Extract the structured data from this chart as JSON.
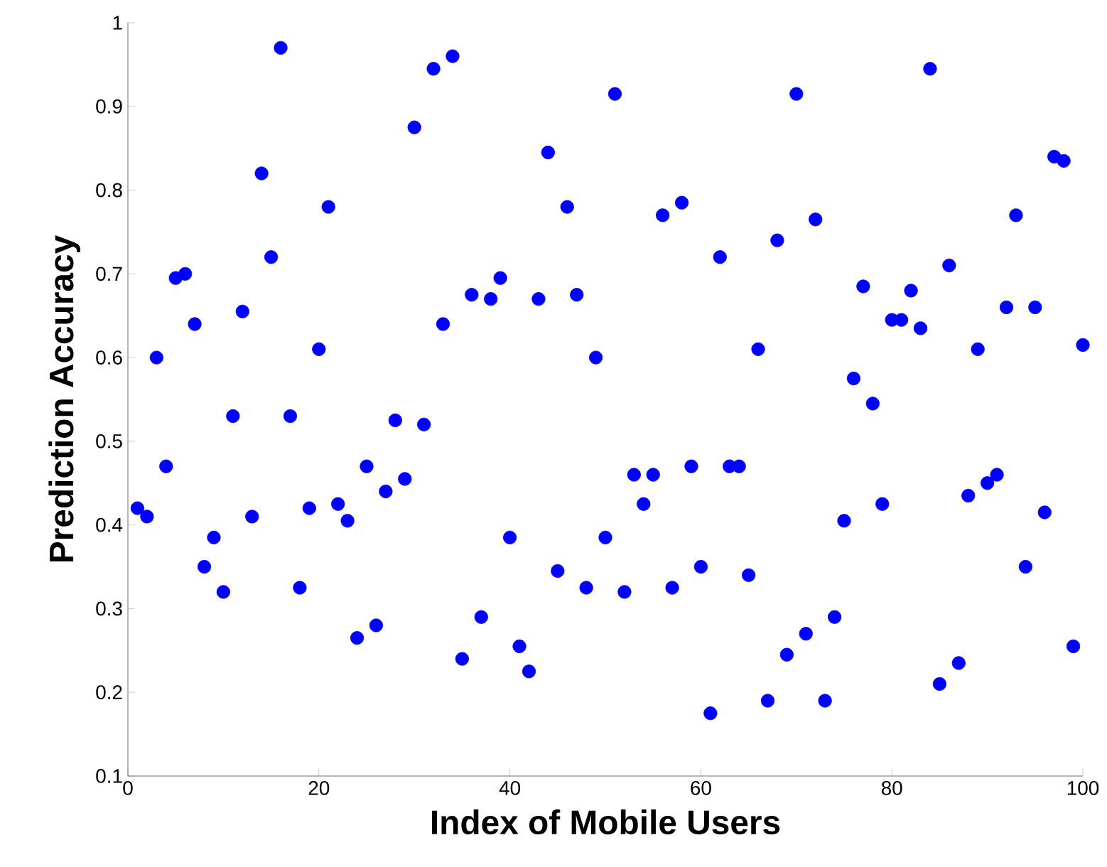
{
  "chart_data": {
    "type": "scatter",
    "xlabel": "Index of Mobile Users",
    "ylabel": "Prediction Accuracy",
    "x": [
      1,
      2,
      3,
      4,
      5,
      6,
      7,
      8,
      9,
      10,
      11,
      12,
      13,
      14,
      15,
      16,
      17,
      18,
      19,
      20,
      21,
      22,
      23,
      24,
      25,
      26,
      27,
      28,
      29,
      30,
      31,
      32,
      33,
      34,
      35,
      36,
      37,
      38,
      39,
      40,
      41,
      42,
      43,
      44,
      45,
      46,
      47,
      48,
      49,
      50,
      51,
      52,
      53,
      54,
      55,
      56,
      57,
      58,
      59,
      60,
      61,
      62,
      63,
      64,
      65,
      66,
      67,
      68,
      69,
      70,
      71,
      72,
      73,
      74,
      75,
      76,
      77,
      78,
      79,
      80,
      81,
      82,
      83,
      84,
      85,
      86,
      87,
      88,
      89,
      90,
      91,
      92,
      93,
      94,
      95,
      96,
      97,
      98,
      99,
      100
    ],
    "series": [
      {
        "color": "#0000ff",
        "values": [
          0.42,
          0.41,
          0.6,
          0.47,
          0.695,
          0.7,
          0.64,
          0.35,
          0.385,
          0.32,
          0.53,
          0.655,
          0.41,
          0.82,
          0.72,
          0.97,
          0.53,
          0.325,
          0.42,
          0.61,
          0.78,
          0.425,
          0.405,
          0.265,
          0.47,
          0.28,
          0.44,
          0.525,
          0.455,
          0.875,
          0.52,
          0.945,
          0.64,
          0.96,
          0.24,
          0.675,
          0.29,
          0.67,
          0.695,
          0.385,
          0.255,
          0.225,
          0.67,
          0.845,
          0.345,
          0.78,
          0.675,
          0.325,
          0.6,
          0.385,
          0.915,
          0.32,
          0.46,
          0.425,
          0.46,
          0.77,
          0.325,
          0.785,
          0.47,
          0.35,
          0.175,
          0.72,
          0.47,
          0.47,
          0.34,
          0.61,
          0.19,
          0.74,
          0.245,
          0.915,
          0.27,
          0.765,
          0.19,
          0.29,
          0.405,
          0.575,
          0.685,
          0.545,
          0.425,
          0.645,
          0.645,
          0.68,
          0.635,
          0.945,
          0.21,
          0.71,
          0.235,
          0.435,
          0.61,
          0.45,
          0.46,
          0.66,
          0.77,
          0.35,
          0.66,
          0.415,
          0.84,
          0.835,
          0.255,
          0.615
        ]
      }
    ],
    "xlim": [
      0,
      100
    ],
    "ylim": [
      0.1,
      1
    ],
    "xticks": [
      0,
      20,
      40,
      60,
      80,
      100
    ],
    "yticks": [
      0.1,
      0.2,
      0.3,
      0.4,
      0.5,
      0.6,
      0.7,
      0.8,
      0.9,
      1
    ],
    "marker": "circle"
  }
}
